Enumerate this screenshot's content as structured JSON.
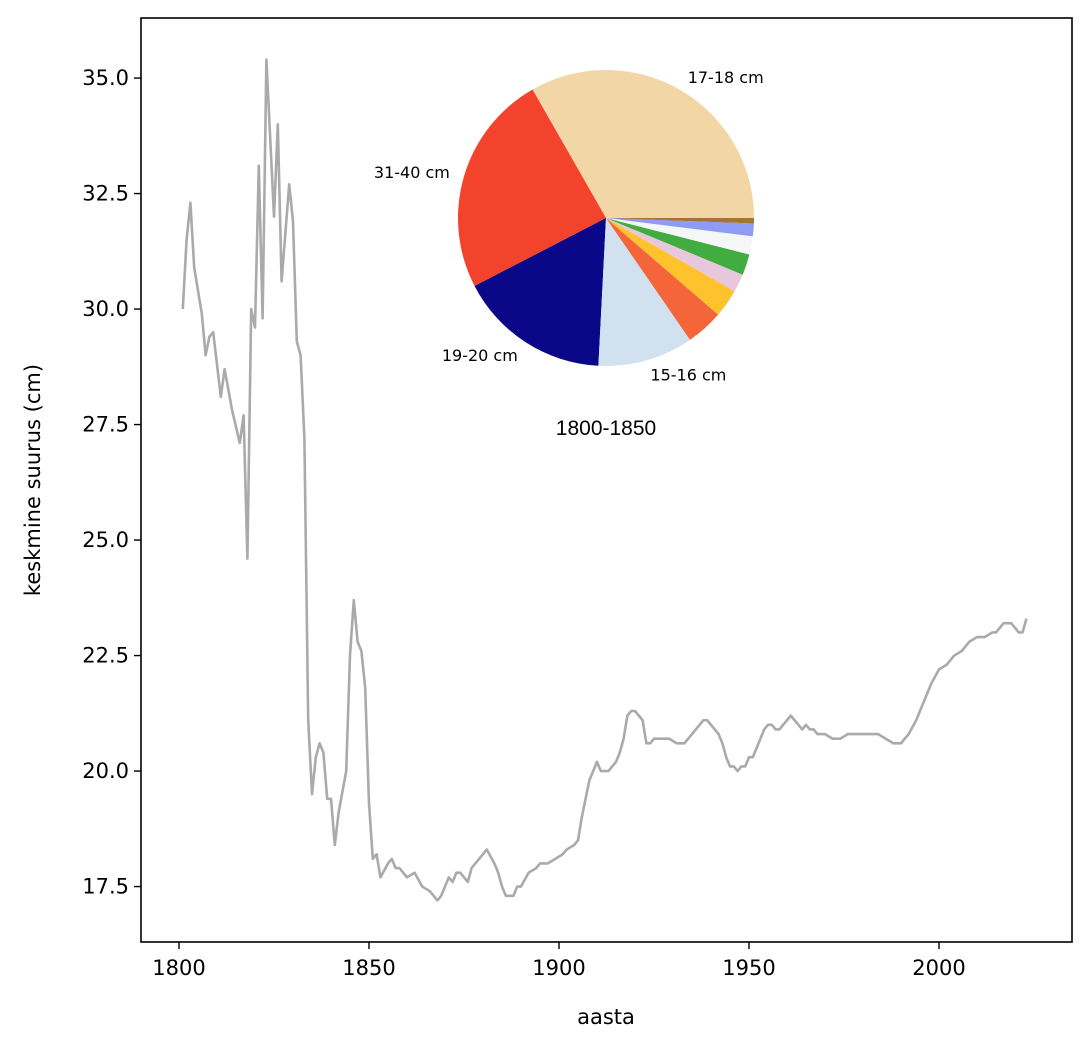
{
  "chart_data": [
    {
      "type": "line",
      "xlabel": "aasta",
      "ylabel": "keskmine suurus (cm)",
      "xlim": [
        1790,
        2035
      ],
      "ylim": [
        16.3,
        36.3
      ],
      "x_ticks": [
        1800,
        1850,
        1900,
        1950,
        2000
      ],
      "x_tick_labels": [
        "1800",
        "1850",
        "1900",
        "1950",
        "2000"
      ],
      "y_ticks": [
        17.5,
        20.0,
        22.5,
        25.0,
        27.5,
        30.0,
        32.5,
        35.0
      ],
      "y_tick_labels": [
        "17.5",
        "20.0",
        "22.5",
        "25.0",
        "27.5",
        "30.0",
        "32.5",
        "35.0"
      ],
      "grid": false,
      "line_color": "#aaaaaa",
      "series": [
        {
          "points": [
            [
              1801,
              30.0
            ],
            [
              1802,
              31.5
            ],
            [
              1803,
              32.3
            ],
            [
              1804,
              30.9
            ],
            [
              1806,
              29.9
            ],
            [
              1807,
              29.0
            ],
            [
              1808,
              29.4
            ],
            [
              1809,
              29.5
            ],
            [
              1811,
              28.1
            ],
            [
              1812,
              28.7
            ],
            [
              1814,
              27.8
            ],
            [
              1816,
              27.1
            ],
            [
              1817,
              27.7
            ],
            [
              1818,
              24.6
            ],
            [
              1819,
              30.0
            ],
            [
              1820,
              29.6
            ],
            [
              1821,
              33.1
            ],
            [
              1822,
              29.8
            ],
            [
              1823,
              35.4
            ],
            [
              1825,
              32.0
            ],
            [
              1826,
              34.0
            ],
            [
              1827,
              30.6
            ],
            [
              1829,
              32.7
            ],
            [
              1830,
              31.9
            ],
            [
              1831,
              29.3
            ],
            [
              1832,
              29.0
            ],
            [
              1833,
              27.2
            ],
            [
              1834,
              21.1
            ],
            [
              1835,
              19.5
            ],
            [
              1836,
              20.3
            ],
            [
              1837,
              20.6
            ],
            [
              1838,
              20.4
            ],
            [
              1839,
              19.4
            ],
            [
              1840,
              19.4
            ],
            [
              1841,
              18.4
            ],
            [
              1842,
              19.1
            ],
            [
              1844,
              20.0
            ],
            [
              1845,
              22.5
            ],
            [
              1846,
              23.7
            ],
            [
              1847,
              22.8
            ],
            [
              1848,
              22.6
            ],
            [
              1849,
              21.8
            ],
            [
              1850,
              19.3
            ],
            [
              1851,
              18.1
            ],
            [
              1852,
              18.2
            ],
            [
              1853,
              17.7
            ],
            [
              1855,
              18.0
            ],
            [
              1856,
              18.1
            ],
            [
              1857,
              17.9
            ],
            [
              1858,
              17.9
            ],
            [
              1860,
              17.7
            ],
            [
              1862,
              17.8
            ],
            [
              1864,
              17.5
            ],
            [
              1866,
              17.4
            ],
            [
              1868,
              17.2
            ],
            [
              1869,
              17.3
            ],
            [
              1870,
              17.5
            ],
            [
              1871,
              17.7
            ],
            [
              1872,
              17.6
            ],
            [
              1873,
              17.8
            ],
            [
              1874,
              17.8
            ],
            [
              1876,
              17.6
            ],
            [
              1877,
              17.9
            ],
            [
              1879,
              18.1
            ],
            [
              1880,
              18.2
            ],
            [
              1881,
              18.3
            ],
            [
              1883,
              18.0
            ],
            [
              1884,
              17.8
            ],
            [
              1885,
              17.5
            ],
            [
              1886,
              17.3
            ],
            [
              1888,
              17.3
            ],
            [
              1889,
              17.5
            ],
            [
              1890,
              17.5
            ],
            [
              1892,
              17.8
            ],
            [
              1894,
              17.9
            ],
            [
              1895,
              18.0
            ],
            [
              1897,
              18.0
            ],
            [
              1899,
              18.1
            ],
            [
              1901,
              18.2
            ],
            [
              1902,
              18.3
            ],
            [
              1904,
              18.4
            ],
            [
              1905,
              18.5
            ],
            [
              1906,
              19.0
            ],
            [
              1907,
              19.4
            ],
            [
              1908,
              19.8
            ],
            [
              1909,
              20.0
            ],
            [
              1910,
              20.2
            ],
            [
              1911,
              20.0
            ],
            [
              1913,
              20.0
            ],
            [
              1914,
              20.1
            ],
            [
              1915,
              20.2
            ],
            [
              1916,
              20.4
            ],
            [
              1917,
              20.7
            ],
            [
              1918,
              21.2
            ],
            [
              1919,
              21.3
            ],
            [
              1920,
              21.3
            ],
            [
              1922,
              21.1
            ],
            [
              1923,
              20.6
            ],
            [
              1924,
              20.6
            ],
            [
              1925,
              20.7
            ],
            [
              1927,
              20.7
            ],
            [
              1929,
              20.7
            ],
            [
              1931,
              20.6
            ],
            [
              1933,
              20.6
            ],
            [
              1935,
              20.8
            ],
            [
              1936,
              20.9
            ],
            [
              1937,
              21.0
            ],
            [
              1938,
              21.1
            ],
            [
              1939,
              21.1
            ],
            [
              1941,
              20.9
            ],
            [
              1942,
              20.8
            ],
            [
              1943,
              20.6
            ],
            [
              1944,
              20.3
            ],
            [
              1945,
              20.1
            ],
            [
              1946,
              20.1
            ],
            [
              1947,
              20.0
            ],
            [
              1948,
              20.1
            ],
            [
              1949,
              20.1
            ],
            [
              1950,
              20.3
            ],
            [
              1951,
              20.3
            ],
            [
              1952,
              20.5
            ],
            [
              1953,
              20.7
            ],
            [
              1954,
              20.9
            ],
            [
              1955,
              21.0
            ],
            [
              1956,
              21.0
            ],
            [
              1957,
              20.9
            ],
            [
              1958,
              20.9
            ],
            [
              1959,
              21.0
            ],
            [
              1960,
              21.1
            ],
            [
              1961,
              21.2
            ],
            [
              1962,
              21.1
            ],
            [
              1963,
              21.0
            ],
            [
              1964,
              20.9
            ],
            [
              1965,
              21.0
            ],
            [
              1966,
              20.9
            ],
            [
              1967,
              20.9
            ],
            [
              1968,
              20.8
            ],
            [
              1970,
              20.8
            ],
            [
              1972,
              20.7
            ],
            [
              1974,
              20.7
            ],
            [
              1976,
              20.8
            ],
            [
              1978,
              20.8
            ],
            [
              1980,
              20.8
            ],
            [
              1982,
              20.8
            ],
            [
              1984,
              20.8
            ],
            [
              1986,
              20.7
            ],
            [
              1988,
              20.6
            ],
            [
              1990,
              20.6
            ],
            [
              1992,
              20.8
            ],
            [
              1994,
              21.1
            ],
            [
              1996,
              21.5
            ],
            [
              1998,
              21.9
            ],
            [
              2000,
              22.2
            ],
            [
              2002,
              22.3
            ],
            [
              2004,
              22.5
            ],
            [
              2006,
              22.6
            ],
            [
              2008,
              22.8
            ],
            [
              2010,
              22.9
            ],
            [
              2012,
              22.9
            ],
            [
              2014,
              23.0
            ],
            [
              2015,
              23.0
            ],
            [
              2016,
              23.1
            ],
            [
              2017,
              23.2
            ],
            [
              2018,
              23.2
            ],
            [
              2019,
              23.2
            ],
            [
              2020,
              23.1
            ],
            [
              2021,
              23.0
            ],
            [
              2022,
              23.0
            ],
            [
              2023,
              23.3
            ]
          ]
        }
      ]
    },
    {
      "type": "pie",
      "caption": "1800-1850",
      "slices": [
        {
          "label": "17-18 cm",
          "value": 33.5,
          "color": "#f3d6a6"
        },
        {
          "label": "31-40 cm",
          "value": 24.5,
          "color": "#f4432c"
        },
        {
          "label": "19-20 cm",
          "value": 16.7,
          "color": "#0a0888"
        },
        {
          "label": "15-16 cm",
          "value": 10.5,
          "color": "#d1e1ef"
        },
        {
          "label": "",
          "value": 4.1,
          "color": "#f5653a"
        },
        {
          "label": "",
          "value": 3.1,
          "color": "#fec22d"
        },
        {
          "label": "",
          "value": 2.0,
          "color": "#e7c7dc"
        },
        {
          "label": "",
          "value": 2.3,
          "color": "#41ac40"
        },
        {
          "label": "",
          "value": 2.0,
          "color": "#f4f7f5"
        },
        {
          "label": "",
          "value": 1.4,
          "color": "#8e9cf5"
        },
        {
          "label": "",
          "value": 0.6,
          "color": "#a47336"
        }
      ]
    }
  ]
}
